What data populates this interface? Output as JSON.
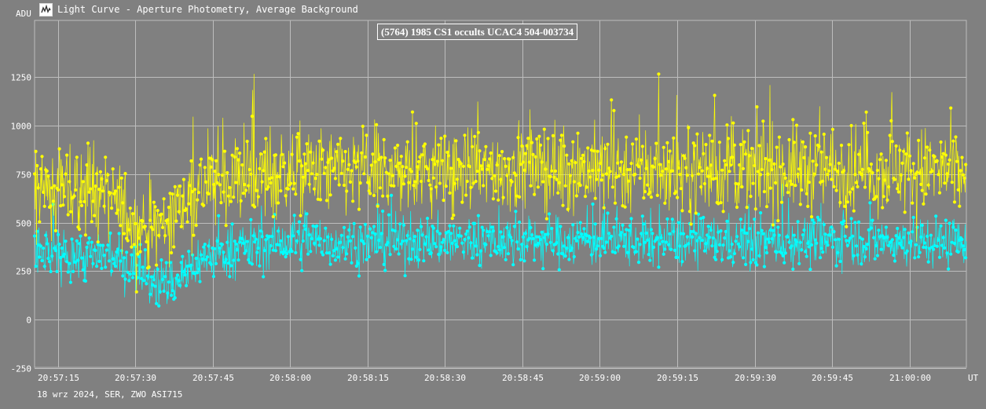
{
  "window": {
    "title": "Light Curve - Aperture Photometry, Average Background",
    "icon": "light-curve-app-icon"
  },
  "footer": {
    "text": "18 wrz 2024, SER, ZWO ASI715"
  },
  "colors": {
    "background": "#808080",
    "grid": "#bdbdbd",
    "target_series": "#ffff00",
    "comparison_series": "#00ffff",
    "text": "#ffffff"
  },
  "chart_data": {
    "type": "line",
    "title": "(5764) 1985 CS1 occults UCAC4 504-003734",
    "xlabel": "UT",
    "ylabel": "ADU",
    "xlim_seconds": [
      75430.5,
      75611.0
    ],
    "ylim": [
      -250,
      1480
    ],
    "grid": true,
    "y_ticks": [
      -250,
      0,
      250,
      500,
      750,
      1000,
      1250
    ],
    "x_ticks": [
      {
        "label": "20:57:15",
        "t": 75435
      },
      {
        "label": "20:57:30",
        "t": 75450
      },
      {
        "label": "20:57:45",
        "t": 75465
      },
      {
        "label": "20:58:00",
        "t": 75480
      },
      {
        "label": "20:58:15",
        "t": 75495
      },
      {
        "label": "20:58:30",
        "t": 75510
      },
      {
        "label": "20:58:45",
        "t": 75525
      },
      {
        "label": "20:59:00",
        "t": 75540
      },
      {
        "label": "20:59:15",
        "t": 75555
      },
      {
        "label": "20:59:30",
        "t": 75570
      },
      {
        "label": "20:59:45",
        "t": 75585
      },
      {
        "label": "21:00:00",
        "t": 75600
      }
    ],
    "x_start": "20:57:10.5",
    "x_end": "21:00:11.0",
    "series_profile": {
      "key_times_seconds": [
        75430.5,
        75438,
        75445,
        75448,
        75451,
        75453,
        75455,
        75458,
        75462,
        75470,
        75480,
        75500,
        75530,
        75560,
        75590,
        75611
      ],
      "target_mean": [
        700,
        670,
        620,
        560,
        470,
        450,
        480,
        560,
        680,
        730,
        760,
        760,
        780,
        770,
        780,
        760
      ],
      "comparison_mean": [
        350,
        330,
        320,
        290,
        260,
        210,
        180,
        200,
        300,
        370,
        400,
        400,
        410,
        400,
        410,
        400
      ]
    },
    "series": [
      {
        "key": "target",
        "color": "#ffff00",
        "spread": 220,
        "min": 46,
        "max": 1430
      },
      {
        "key": "comparison",
        "color": "#00ffff",
        "spread": 130,
        "min": 0,
        "max": 700
      }
    ]
  }
}
